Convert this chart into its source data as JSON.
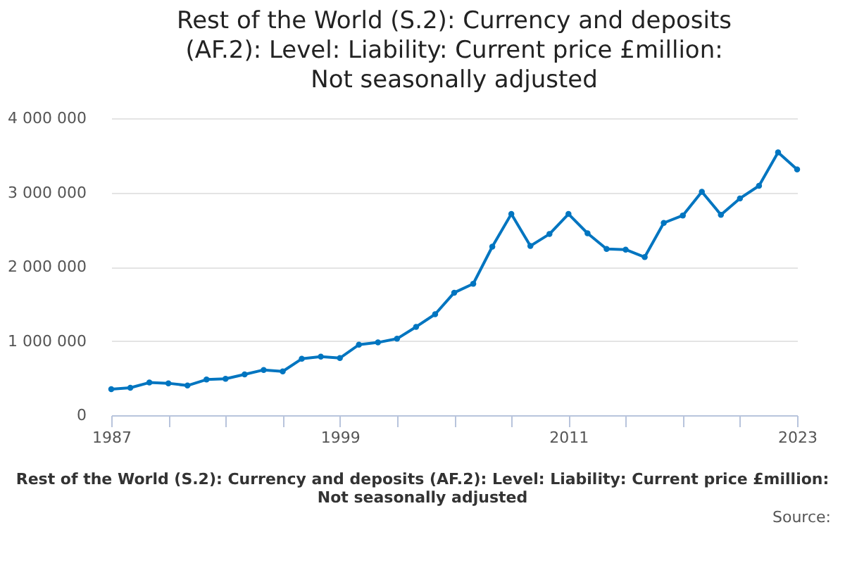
{
  "chart_data": {
    "type": "line",
    "title": "Rest of the World (S.2): Currency and deposits (AF.2): Level: Liability: Current price £million: Not seasonally adjusted",
    "annotations": [
      "Rest of the World (S.2): Currency and deposits (AF.2): Level: Liability: Current price £million: Not seasonally adjusted",
      "Source:"
    ],
    "x": [
      1987,
      1988,
      1989,
      1990,
      1991,
      1992,
      1993,
      1994,
      1995,
      1996,
      1997,
      1998,
      1999,
      2000,
      2001,
      2002,
      2003,
      2004,
      2005,
      2006,
      2007,
      2008,
      2009,
      2010,
      2011,
      2012,
      2013,
      2014,
      2015,
      2016,
      2017,
      2018,
      2019,
      2020,
      2021,
      2022,
      2023
    ],
    "series": [
      {
        "color": "#0075c0",
        "values": [
          350000,
          370000,
          440000,
          430000,
          400000,
          480000,
          490000,
          550000,
          610000,
          590000,
          760000,
          790000,
          770000,
          950000,
          980000,
          1030000,
          1190000,
          1360000,
          1650000,
          1770000,
          2270000,
          2710000,
          2280000,
          2440000,
          2710000,
          2450000,
          2240000,
          2230000,
          2130000,
          2590000,
          2690000,
          3010000,
          2700000,
          2920000,
          3090000,
          3540000,
          3310000
        ]
      }
    ],
    "xlim": [
      1987,
      2023
    ],
    "xticks": [
      1987,
      {
        "value": 1990,
        "label": null
      },
      {
        "value": 1993,
        "label": null
      },
      {
        "value": 1996,
        "label": null
      },
      1999,
      {
        "value": 2002,
        "label": null
      },
      {
        "value": 2005,
        "label": null
      },
      {
        "value": 2008,
        "label": null
      },
      2011,
      {
        "value": 2014,
        "label": null
      },
      {
        "value": 2017,
        "label": null
      },
      {
        "value": 2020,
        "label": null
      },
      2023
    ],
    "ylim": [
      0,
      4000000
    ],
    "yticks": [
      {
        "value": 0,
        "label": "0"
      },
      {
        "value": 1000000,
        "label": "1 000 000"
      },
      {
        "value": 2000000,
        "label": "2 000 000"
      },
      {
        "value": 3000000,
        "label": "3 000 000"
      },
      {
        "value": 4000000,
        "label": "4 000 000"
      }
    ],
    "grid": "y",
    "marker": "circle",
    "line_style": "solid"
  }
}
